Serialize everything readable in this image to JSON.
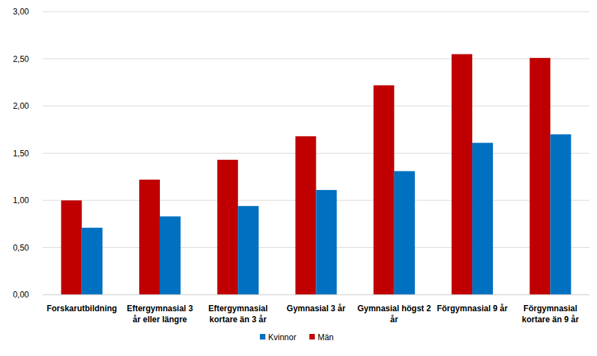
{
  "chart_data": {
    "type": "bar",
    "categories": [
      "Forskarutbildning",
      "Eftergymnasial 3 år eller längre",
      "Eftergymnasial kortare än 3 år",
      "Gymnasial 3 år",
      "Gymnasial högst 2 år",
      "Förgymnasial 9 år",
      "Förgymnasial kortare än 9 år"
    ],
    "series": [
      {
        "name": "Män",
        "color": "#c00000",
        "values": [
          1.0,
          1.22,
          1.43,
          1.68,
          2.22,
          2.55,
          2.51
        ]
      },
      {
        "name": "Kvinnor",
        "color": "#0070c0",
        "values": [
          0.71,
          0.83,
          0.94,
          1.11,
          1.31,
          1.61,
          1.7
        ]
      }
    ],
    "ylim": [
      0,
      3
    ],
    "yticks": [
      {
        "value": 0,
        "label": "0,00"
      },
      {
        "value": 0.5,
        "label": "0,50"
      },
      {
        "value": 1,
        "label": "1,00"
      },
      {
        "value": 1.5,
        "label": "1,50"
      },
      {
        "value": 2,
        "label": "2,00"
      },
      {
        "value": 2.5,
        "label": "2,50"
      },
      {
        "value": 3,
        "label": "3,00"
      }
    ],
    "grid": true,
    "legend": "bottom"
  }
}
